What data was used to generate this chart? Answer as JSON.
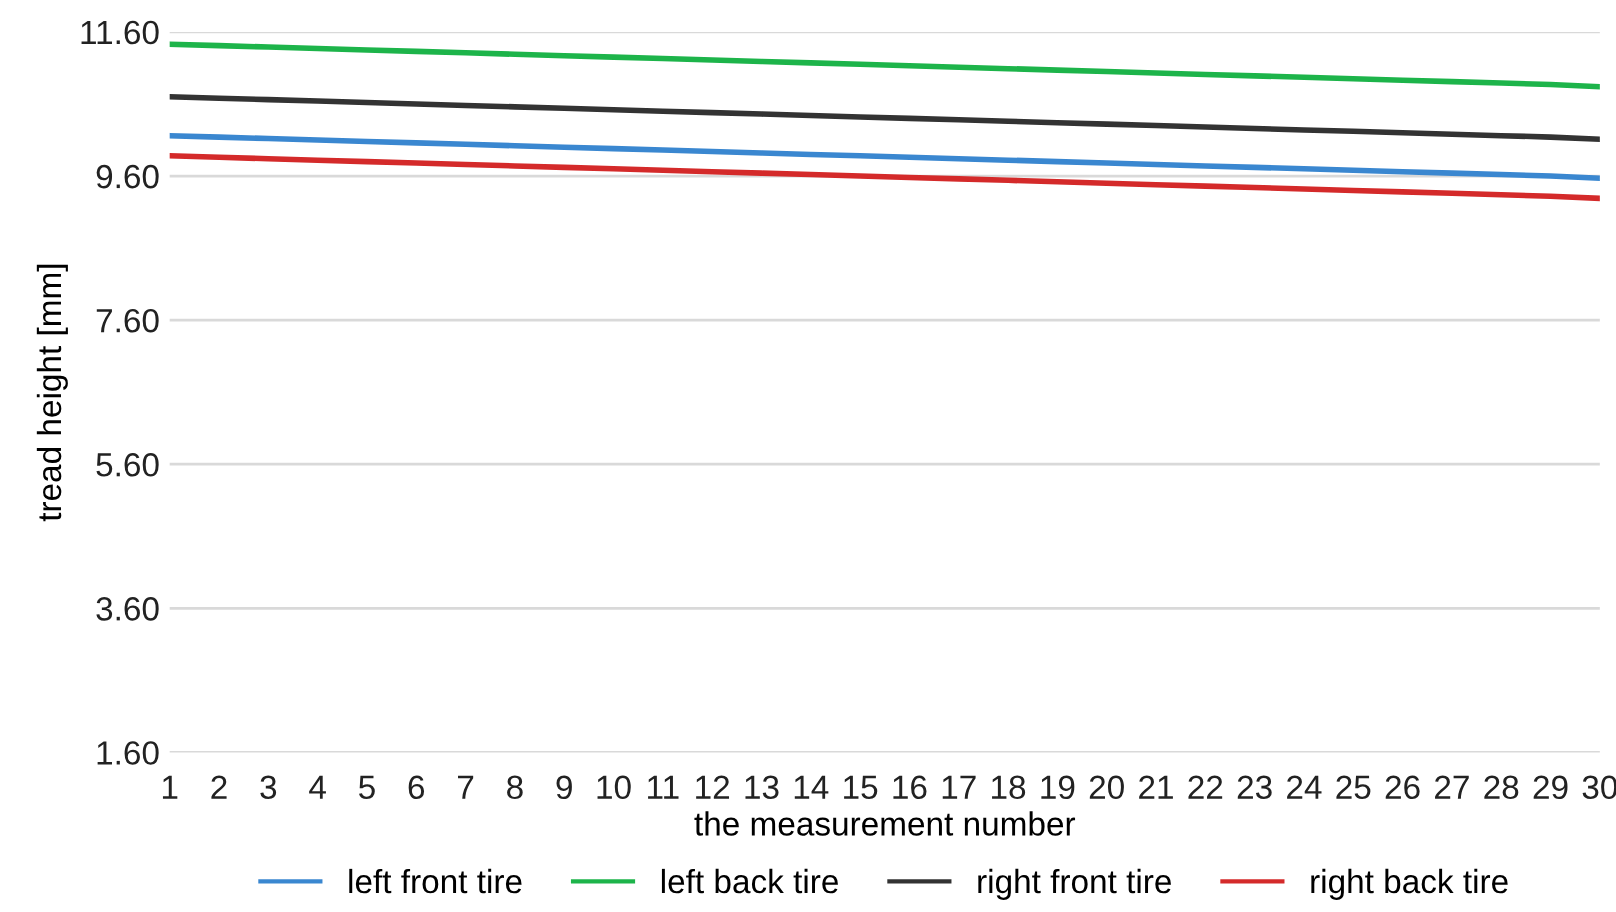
{
  "chart_data": {
    "type": "line",
    "xlabel": "the measurement number",
    "ylabel": "tread height [mm]",
    "categories": [
      "1",
      "2",
      "3",
      "4",
      "5",
      "6",
      "7",
      "8",
      "9",
      "10",
      "11",
      "12",
      "13",
      "14",
      "15",
      "16",
      "17",
      "18",
      "19",
      "20",
      "21",
      "22",
      "23",
      "24",
      "25",
      "26",
      "27",
      "28",
      "29",
      "30"
    ],
    "ylim": [
      1.6,
      11.6
    ],
    "yticks": [
      {
        "value": 1.6,
        "label": "1.60"
      },
      {
        "value": 3.6,
        "label": "3.60"
      },
      {
        "value": 5.6,
        "label": "5.60"
      },
      {
        "value": 7.6,
        "label": "7.60"
      },
      {
        "value": 9.6,
        "label": "9.60"
      },
      {
        "value": 11.6,
        "label": "11.60"
      }
    ],
    "grid": "y",
    "legend": "bottom",
    "marker": "none",
    "line_style": "solid",
    "series": [
      {
        "name": "left front tire",
        "color": "#3a87d0",
        "values": [
          10.16,
          10.14,
          10.12,
          10.1,
          10.08,
          10.06,
          10.04,
          10.02,
          10.0,
          9.98,
          9.96,
          9.94,
          9.92,
          9.9,
          9.88,
          9.86,
          9.84,
          9.82,
          9.8,
          9.78,
          9.76,
          9.74,
          9.72,
          9.7,
          9.68,
          9.66,
          9.64,
          9.62,
          9.6,
          9.57
        ]
      },
      {
        "name": "left back tire",
        "color": "#1db44a",
        "values": [
          11.43,
          11.41,
          11.39,
          11.37,
          11.35,
          11.33,
          11.31,
          11.29,
          11.27,
          11.25,
          11.23,
          11.21,
          11.19,
          11.17,
          11.15,
          11.13,
          11.11,
          11.09,
          11.07,
          11.05,
          11.03,
          11.01,
          10.99,
          10.97,
          10.95,
          10.93,
          10.91,
          10.89,
          10.87,
          10.84
        ]
      },
      {
        "name": "right front tire",
        "color": "#333333",
        "values": [
          10.7,
          10.68,
          10.66,
          10.64,
          10.62,
          10.6,
          10.58,
          10.56,
          10.54,
          10.52,
          10.5,
          10.48,
          10.46,
          10.44,
          10.42,
          10.4,
          10.38,
          10.36,
          10.34,
          10.32,
          10.3,
          10.28,
          10.26,
          10.24,
          10.22,
          10.2,
          10.18,
          10.16,
          10.14,
          10.11
        ]
      },
      {
        "name": "right back tire",
        "color": "#d42a2a",
        "values": [
          9.88,
          9.86,
          9.84,
          9.82,
          9.8,
          9.78,
          9.76,
          9.74,
          9.72,
          9.7,
          9.68,
          9.66,
          9.64,
          9.62,
          9.6,
          9.58,
          9.56,
          9.54,
          9.52,
          9.5,
          9.48,
          9.46,
          9.44,
          9.42,
          9.4,
          9.38,
          9.36,
          9.34,
          9.32,
          9.29
        ]
      }
    ]
  }
}
